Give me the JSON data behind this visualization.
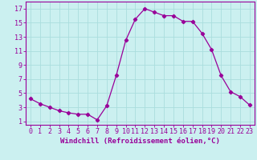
{
  "x": [
    0,
    1,
    2,
    3,
    4,
    5,
    6,
    7,
    8,
    9,
    10,
    11,
    12,
    13,
    14,
    15,
    16,
    17,
    18,
    19,
    20,
    21,
    22,
    23
  ],
  "y": [
    4.2,
    3.5,
    3.0,
    2.5,
    2.2,
    2.0,
    2.0,
    1.2,
    3.2,
    7.5,
    12.5,
    15.5,
    17.0,
    16.5,
    16.0,
    16.0,
    15.2,
    15.2,
    13.5,
    11.2,
    7.5,
    5.2,
    4.5,
    3.3
  ],
  "line_color": "#990099",
  "marker": "D",
  "marker_size": 2.2,
  "bg_color": "#cbf0f0",
  "grid_color": "#aadddd",
  "xlabel": "Windchill (Refroidissement éolien,°C)",
  "xlabel_color": "#990099",
  "tick_color": "#990099",
  "ylabel_ticks": [
    1,
    3,
    5,
    7,
    9,
    11,
    13,
    15,
    17
  ],
  "xlim": [
    -0.5,
    23.5
  ],
  "ylim": [
    0.5,
    18.0
  ],
  "xticks": [
    0,
    1,
    2,
    3,
    4,
    5,
    6,
    7,
    8,
    9,
    10,
    11,
    12,
    13,
    14,
    15,
    16,
    17,
    18,
    19,
    20,
    21,
    22,
    23
  ],
  "spine_color": "#990099",
  "font_family": "monospace",
  "tick_fontsize": 6.0,
  "xlabel_fontsize": 6.5
}
